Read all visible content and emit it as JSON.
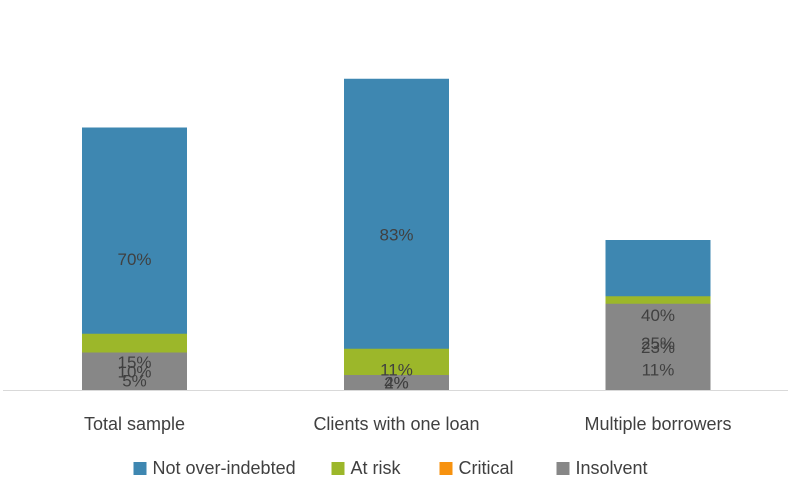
{
  "chart_data": {
    "type": "bar",
    "stacked": true,
    "categories": [
      "Total sample",
      "Clients with one loan",
      "Multiple borrowers"
    ],
    "series": [
      {
        "name": "Not over-indebted",
        "color": "#3E87B1",
        "values": [
          70,
          83,
          40
        ],
        "labels": [
          "70%",
          "83%",
          "40%"
        ]
      },
      {
        "name": "At risk",
        "color": "#9CB72A",
        "values": [
          15,
          11,
          25
        ],
        "labels": [
          "15%",
          "11%",
          "25%"
        ]
      },
      {
        "name": "Critical",
        "color": "#F7920F",
        "values": [
          5,
          2,
          11
        ],
        "labels": [
          "5%",
          "2%",
          "11%"
        ]
      },
      {
        "name": "Insolvent",
        "color": "#878787",
        "values": [
          10,
          4,
          23
        ],
        "labels": [
          "10%",
          "4%",
          "23%"
        ]
      }
    ],
    "ylim": [
      0,
      100
    ],
    "legend_position": "bottom",
    "grid": false,
    "title": "",
    "xlabel": "",
    "ylabel": ""
  }
}
